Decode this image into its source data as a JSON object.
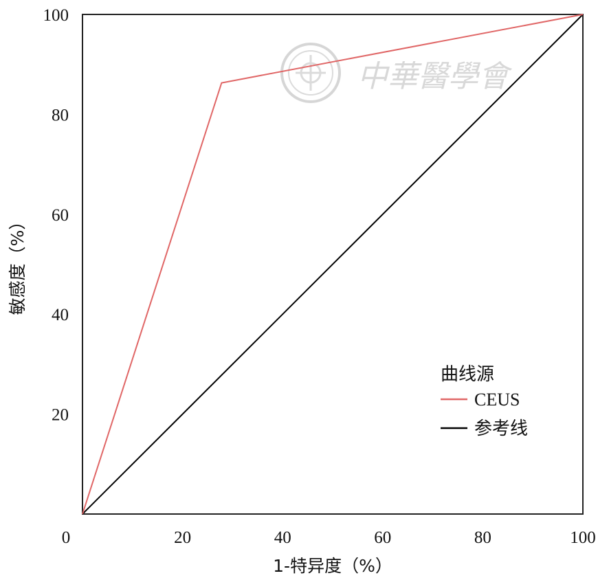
{
  "chart_data": {
    "type": "line",
    "xlabel": "1-特异度（%）",
    "ylabel": "敏感度（%）",
    "xlim": [
      0,
      100
    ],
    "ylim": [
      0,
      100
    ],
    "x_ticks": [
      "0",
      "20",
      "40",
      "60",
      "80",
      "100"
    ],
    "y_ticks": [
      "20",
      "40",
      "60",
      "80",
      "100"
    ],
    "grid": false,
    "legend": {
      "title": "曲线源",
      "placement": "lower-right",
      "entries": [
        "CEUS",
        "参考线"
      ]
    },
    "series": [
      {
        "name": "CEUS",
        "color": "#e06666",
        "x": [
          0,
          27.8,
          100
        ],
        "y": [
          0,
          86.3,
          100
        ]
      },
      {
        "name": "参考线",
        "color": "#000000",
        "x": [
          0,
          100
        ],
        "y": [
          0,
          100
        ]
      }
    ],
    "watermark": {
      "text": "中華醫學會",
      "logo": "cma-seal"
    }
  }
}
